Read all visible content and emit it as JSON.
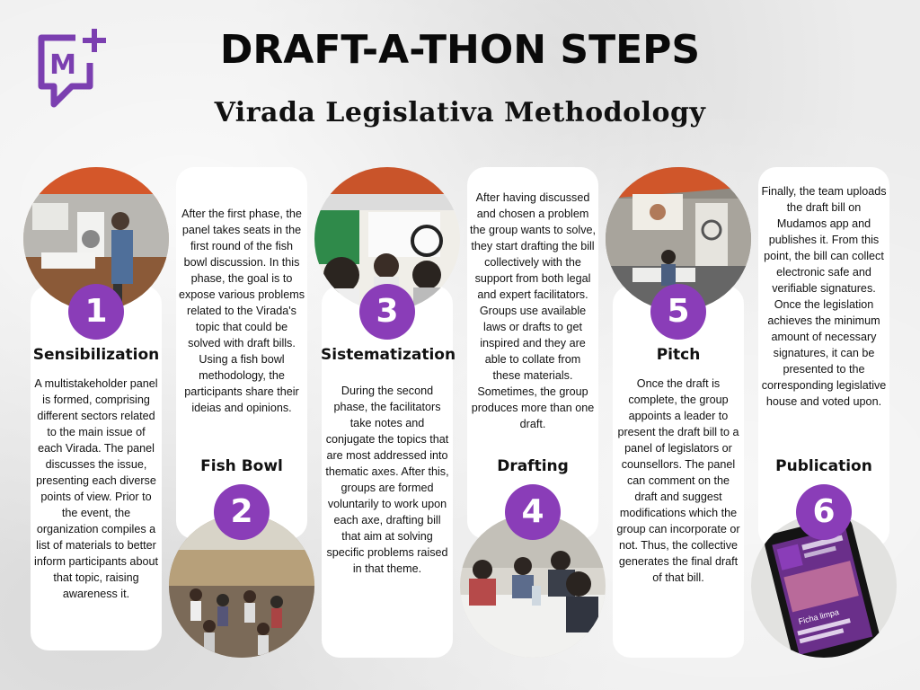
{
  "header": {
    "title": "DRAFT-A-THON STEPS",
    "subtitle": "Virada Legislativa Methodology",
    "logo_letter": "M"
  },
  "colors": {
    "accent": "#8a3db8",
    "logo": "#7b3fb0",
    "card": "#ffffff",
    "background": "#ececec"
  },
  "steps": [
    {
      "number": "1",
      "title": "Sensibilization",
      "text": "A multistakeholder panel is formed, comprising different sectors related to the main issue of each Virada. The panel discusses the issue, presenting each diverse points of view. Prior to the event, the organization compiles a list of materials to better inform participants about that topic, raising awareness it.",
      "photo": "panel-discussion-photo"
    },
    {
      "number": "2",
      "title": "Fish Bowl",
      "text": "After the first phase, the panel takes seats in the first round of the fish bowl discussion. In this phase, the goal is to expose various problems related to the Virada's topic that could be solved with draft bills. Using a fish bowl methodology, the participants share their ideias and opinions.",
      "photo": "fishbowl-circle-photo"
    },
    {
      "number": "3",
      "title": "Sistematization",
      "text": "During the second phase, the facilitators take notes and conjugate the topics that are most addressed into thematic axes. After this, groups are formed voluntarily to work upon each axe, drafting bill that aim at solving specific problems raised in that theme.",
      "photo": "whiteboard-sorting-photo"
    },
    {
      "number": "4",
      "title": "Drafting",
      "text": "After having discussed and chosen a problem the group wants to solve, they start drafting the bill collectively with the support from both legal and expert facilitators. Groups use available laws or drafts to get inspired and they are able to collate from these materials. Sometimes, the group produces more than one draft.",
      "photo": "group-table-photo"
    },
    {
      "number": "5",
      "title": "Pitch",
      "text": "Once the draft is complete, the group appoints a leader to present the draft bill to a panel of legislators or counsellors. The panel can comment on the draft and suggest modifications which the group can incorporate or not. Thus, the collective generates the final draft of that bill.",
      "photo": "pitch-stage-photo"
    },
    {
      "number": "6",
      "title": "Publication",
      "text": "Finally, the team uploads the draft bill on Mudamos app and publishes it. From this point, the bill can collect electronic safe and verifiable signatures. Once the legislation achieves the minimum amount of necessary signatures, it can be presented to the corresponding legislative house and voted upon.",
      "photo": "mudamos-app-phone-photo",
      "phone_text": "Ficha limpa"
    }
  ]
}
